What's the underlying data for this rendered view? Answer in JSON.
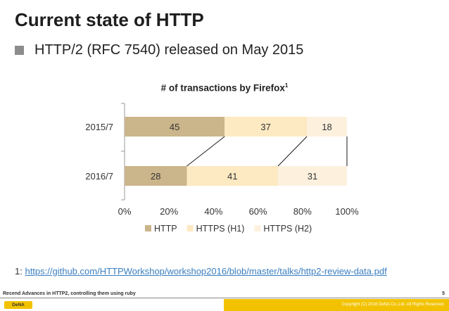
{
  "slide": {
    "title": "Current state of HTTP",
    "bullet": "HTTP/2 (RFC 7540) released on May 2015"
  },
  "chart_data": {
    "type": "bar",
    "orientation": "horizontal",
    "stacked": true,
    "title": "# of transactions by Firefox",
    "title_superscript": "1",
    "categories": [
      "2015/7",
      "2016/7"
    ],
    "series": [
      {
        "name": "HTTP",
        "values": [
          45,
          28
        ],
        "color": "#cbb58a"
      },
      {
        "name": "HTTPS (H1)",
        "values": [
          37,
          41
        ],
        "color": "#fde9c2"
      },
      {
        "name": "HTTPS (H2)",
        "values": [
          18,
          31
        ],
        "color": "#fdf1de"
      }
    ],
    "xlim": [
      0,
      100
    ],
    "xticks": [
      "0%",
      "20%",
      "40%",
      "60%",
      "80%",
      "100%"
    ],
    "legend_position": "bottom",
    "connector_lines": true
  },
  "footnote": {
    "marker": "1:",
    "link": "https://github.com/HTTPWorkshop/workshop2016/blob/master/talks/http2-review-data.pdf"
  },
  "footer": {
    "left_text": "Recend Advances in HTTP2, controlling them using ruby",
    "logo": "DeNA",
    "copyright": "Copyright (C) 2016 DeNA Co.,Ltd. All Rights Reserved.",
    "page_number": "5"
  }
}
